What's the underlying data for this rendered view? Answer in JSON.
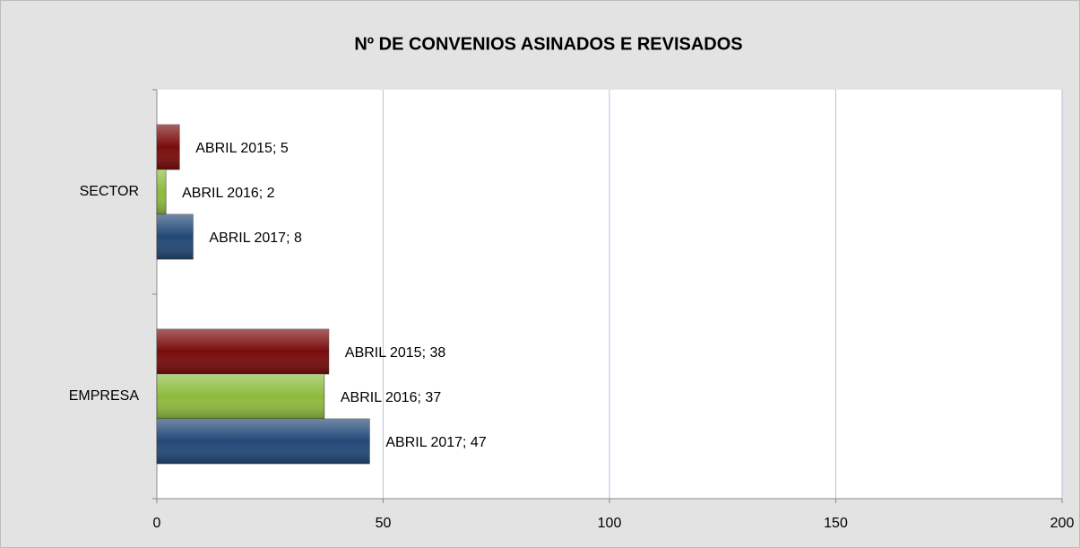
{
  "chart_data": {
    "type": "barh",
    "title": "Nº DE CONVENIOS ASINADOS E REVISADOS",
    "categories": [
      "SECTOR",
      "EMPRESA"
    ],
    "series": [
      {
        "name": "ABRIL 2015",
        "color": "#7a0c0c",
        "values": [
          5,
          38
        ],
        "value_labels": [
          "ABRIL 2015; 5",
          "ABRIL 2015; 38"
        ]
      },
      {
        "name": "ABRIL 2016",
        "color": "#8dbb3c",
        "values": [
          2,
          37
        ],
        "value_labels": [
          "ABRIL 2016; 2",
          "ABRIL 2016; 37"
        ]
      },
      {
        "name": "ABRIL 2017",
        "color": "#234877",
        "values": [
          8,
          47
        ],
        "value_labels": [
          "ABRIL 2017; 8",
          "ABRIL 2017; 47"
        ]
      }
    ],
    "xlim": [
      0,
      200
    ],
    "xticks": [
      0,
      50,
      100,
      150,
      200
    ],
    "grid": true
  }
}
